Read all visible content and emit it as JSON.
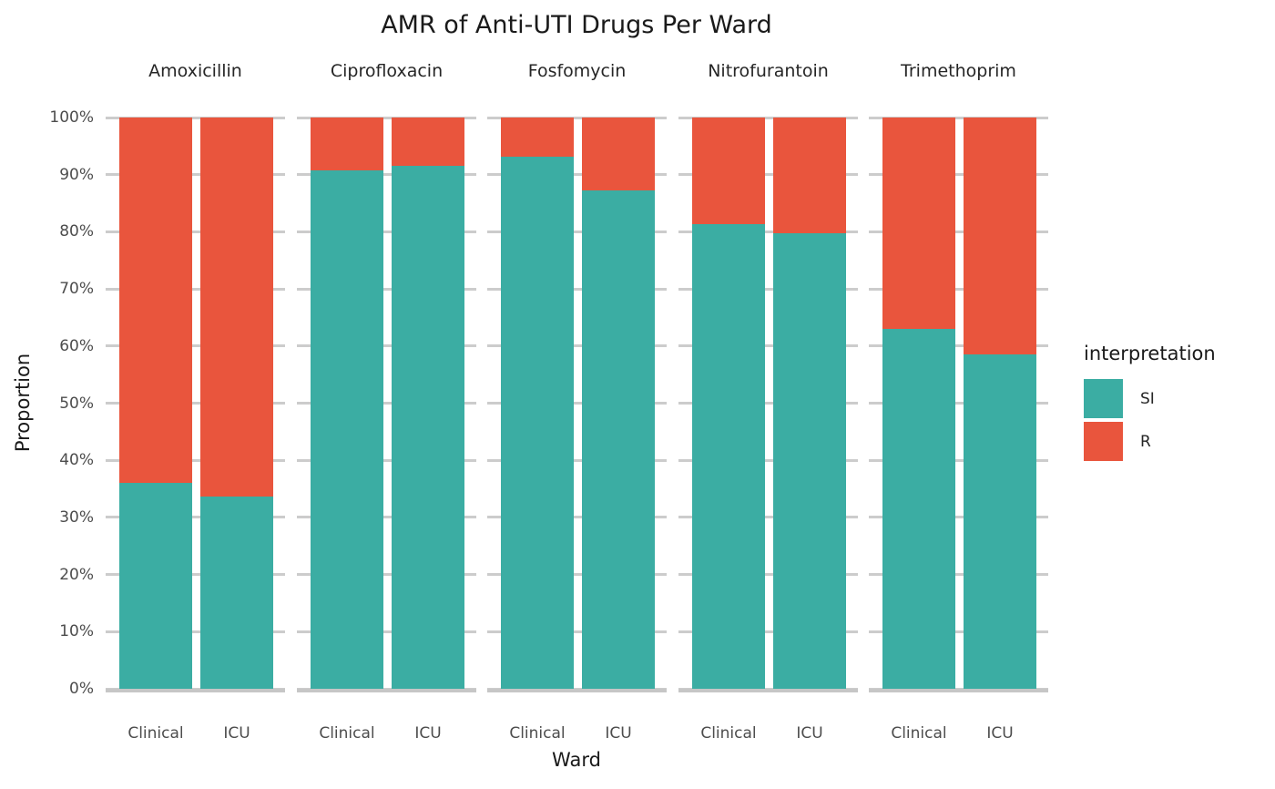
{
  "chart_data": {
    "type": "bar",
    "stacked": true,
    "orientation": "vertical",
    "title": "AMR of Anti-UTI Drugs Per Ward",
    "xlabel": "Ward",
    "ylabel": "Proportion",
    "ylim": [
      0,
      100
    ],
    "y_unit": "percent",
    "y_tick_labels": [
      "0%",
      "10%",
      "20%",
      "30%",
      "40%",
      "50%",
      "60%",
      "70%",
      "80%",
      "90%",
      "100%"
    ],
    "grid": "horizontal-major",
    "gridline_color": "#cccccc",
    "background": "#ffffff",
    "categories": [
      "Clinical",
      "ICU"
    ],
    "legend": {
      "title": "interpretation",
      "position": "right",
      "entries": [
        {
          "label": "SI",
          "color": "#3bada3"
        },
        {
          "label": "R",
          "color": "#e9553d"
        }
      ]
    },
    "facets": [
      {
        "label": "Amoxicillin",
        "series": [
          {
            "name": "SI",
            "values": [
              36.0,
              33.7
            ]
          },
          {
            "name": "R",
            "values": [
              64.0,
              66.3
            ]
          }
        ]
      },
      {
        "label": "Ciprofloxacin",
        "series": [
          {
            "name": "SI",
            "values": [
              90.7,
              91.5
            ]
          },
          {
            "name": "R",
            "values": [
              9.3,
              8.5
            ]
          }
        ]
      },
      {
        "label": "Fosfomycin",
        "series": [
          {
            "name": "SI",
            "values": [
              93.1,
              87.3
            ]
          },
          {
            "name": "R",
            "values": [
              6.9,
              12.7
            ]
          }
        ]
      },
      {
        "label": "Nitrofurantoin",
        "series": [
          {
            "name": "SI",
            "values": [
              81.3,
              79.8
            ]
          },
          {
            "name": "R",
            "values": [
              18.7,
              20.2
            ]
          }
        ]
      },
      {
        "label": "Trimethoprim",
        "series": [
          {
            "name": "SI",
            "values": [
              63.0,
              58.5
            ]
          },
          {
            "name": "R",
            "values": [
              37.0,
              41.5
            ]
          }
        ]
      }
    ]
  }
}
